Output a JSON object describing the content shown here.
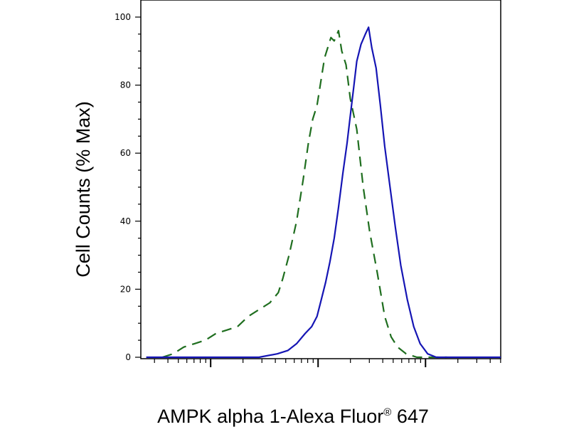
{
  "chart_data": {
    "type": "line",
    "title": "",
    "xlabel": "AMPK alpha 1-Alexa Fluor",
    "xlabel_superscript": "®",
    "xlabel_suffix": " 647",
    "ylabel": "Cell Counts (% Max)",
    "x_scale": "log",
    "x_labels_shown": false,
    "ylim": [
      0,
      100
    ],
    "yticks": [
      0,
      20,
      40,
      60,
      80,
      100
    ],
    "ytick_labels": [
      "0",
      "20",
      "40",
      "60",
      "80",
      "100"
    ],
    "grid": false,
    "legend": "none",
    "series": [
      {
        "style": "dashed",
        "color": "#1f6e1f",
        "values": [
          [
            -0.45,
            0
          ],
          [
            -0.35,
            1
          ],
          [
            -0.25,
            3
          ],
          [
            -0.15,
            4
          ],
          [
            -0.05,
            5
          ],
          [
            0.05,
            7
          ],
          [
            0.15,
            8
          ],
          [
            0.25,
            9
          ],
          [
            0.35,
            12
          ],
          [
            0.45,
            14
          ],
          [
            0.55,
            16
          ],
          [
            0.63,
            19
          ],
          [
            0.67,
            23
          ],
          [
            0.73,
            30
          ],
          [
            0.8,
            40
          ],
          [
            0.86,
            52
          ],
          [
            0.91,
            63
          ],
          [
            0.95,
            70
          ],
          [
            0.99,
            74
          ],
          [
            1.03,
            82
          ],
          [
            1.06,
            88
          ],
          [
            1.09,
            91
          ],
          [
            1.12,
            94
          ],
          [
            1.15,
            93
          ],
          [
            1.19,
            96
          ],
          [
            1.22,
            90
          ],
          [
            1.26,
            86
          ],
          [
            1.3,
            76
          ],
          [
            1.36,
            67
          ],
          [
            1.42,
            50
          ],
          [
            1.48,
            37
          ],
          [
            1.55,
            25
          ],
          [
            1.62,
            12
          ],
          [
            1.68,
            6
          ],
          [
            1.74,
            3
          ],
          [
            1.82,
            1
          ],
          [
            1.92,
            0
          ],
          [
            2.2,
            0
          ]
        ]
      },
      {
        "style": "solid",
        "color": "#1515b4",
        "values": [
          [
            -0.6,
            0
          ],
          [
            0.2,
            0
          ],
          [
            0.45,
            0
          ],
          [
            0.62,
            1
          ],
          [
            0.72,
            2
          ],
          [
            0.8,
            4
          ],
          [
            0.88,
            7
          ],
          [
            0.94,
            9
          ],
          [
            0.99,
            12
          ],
          [
            1.03,
            17
          ],
          [
            1.07,
            22
          ],
          [
            1.11,
            28
          ],
          [
            1.15,
            35
          ],
          [
            1.19,
            44
          ],
          [
            1.23,
            54
          ],
          [
            1.27,
            63
          ],
          [
            1.3,
            71
          ],
          [
            1.33,
            79
          ],
          [
            1.36,
            87
          ],
          [
            1.4,
            92
          ],
          [
            1.44,
            95
          ],
          [
            1.47,
            97
          ],
          [
            1.5,
            91
          ],
          [
            1.54,
            85
          ],
          [
            1.58,
            74
          ],
          [
            1.62,
            62
          ],
          [
            1.67,
            50
          ],
          [
            1.72,
            38
          ],
          [
            1.77,
            27
          ],
          [
            1.83,
            17
          ],
          [
            1.89,
            9
          ],
          [
            1.95,
            4
          ],
          [
            2.02,
            1
          ],
          [
            2.1,
            0
          ],
          [
            2.3,
            0
          ],
          [
            2.7,
            0
          ]
        ]
      }
    ]
  }
}
